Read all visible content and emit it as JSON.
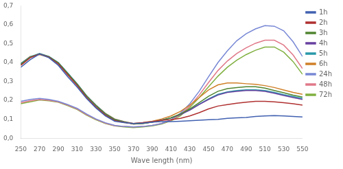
{
  "chart_data": {
    "type": "line",
    "xlabel": "Wave length (nm)",
    "x": [
      250,
      260,
      270,
      280,
      290,
      300,
      310,
      320,
      330,
      340,
      350,
      360,
      370,
      380,
      390,
      400,
      410,
      420,
      430,
      440,
      450,
      460,
      470,
      480,
      490,
      500,
      510,
      520,
      530,
      540,
      550
    ],
    "series": [
      {
        "name": "1h",
        "color": "#4060b0",
        "values": [
          0.375,
          0.415,
          0.445,
          0.425,
          0.385,
          0.325,
          0.27,
          0.21,
          0.16,
          0.118,
          0.09,
          0.082,
          0.078,
          0.08,
          0.085,
          0.088,
          0.088,
          0.09,
          0.092,
          0.095,
          0.098,
          0.1,
          0.105,
          0.108,
          0.11,
          0.115,
          0.118,
          0.12,
          0.118,
          0.115,
          0.112
        ]
      },
      {
        "name": "2h",
        "color": "#b03030",
        "values": [
          0.385,
          0.425,
          0.445,
          0.428,
          0.392,
          0.335,
          0.278,
          0.215,
          0.165,
          0.122,
          0.093,
          0.083,
          0.078,
          0.082,
          0.088,
          0.095,
          0.098,
          0.105,
          0.118,
          0.135,
          0.155,
          0.17,
          0.178,
          0.185,
          0.19,
          0.195,
          0.195,
          0.192,
          0.188,
          0.182,
          0.175
        ]
      },
      {
        "name": "3h",
        "color": "#508530",
        "values": [
          0.39,
          0.428,
          0.445,
          0.43,
          0.398,
          0.342,
          0.285,
          0.222,
          0.172,
          0.128,
          0.098,
          0.085,
          0.075,
          0.078,
          0.085,
          0.095,
          0.108,
          0.128,
          0.155,
          0.188,
          0.222,
          0.248,
          0.262,
          0.268,
          0.272,
          0.272,
          0.265,
          0.252,
          0.24,
          0.228,
          0.218
        ]
      },
      {
        "name": "4h",
        "color": "#6840a0",
        "values": [
          0.39,
          0.428,
          0.445,
          0.43,
          0.398,
          0.342,
          0.285,
          0.222,
          0.172,
          0.128,
          0.098,
          0.085,
          0.075,
          0.078,
          0.085,
          0.095,
          0.108,
          0.125,
          0.148,
          0.178,
          0.205,
          0.228,
          0.242,
          0.248,
          0.252,
          0.252,
          0.248,
          0.238,
          0.226,
          0.215,
          0.205
        ]
      },
      {
        "name": "5h",
        "color": "#2898a8",
        "values": [
          0.395,
          0.43,
          0.448,
          0.432,
          0.4,
          0.345,
          0.288,
          0.225,
          0.175,
          0.13,
          0.1,
          0.087,
          0.076,
          0.079,
          0.086,
          0.096,
          0.108,
          0.126,
          0.15,
          0.18,
          0.208,
          0.232,
          0.245,
          0.252,
          0.256,
          0.256,
          0.252,
          0.242,
          0.23,
          0.22,
          0.21
        ]
      },
      {
        "name": "6h",
        "color": "#d08028",
        "values": [
          0.395,
          0.432,
          0.442,
          0.428,
          0.398,
          0.342,
          0.288,
          0.225,
          0.175,
          0.132,
          0.102,
          0.088,
          0.078,
          0.082,
          0.09,
          0.102,
          0.118,
          0.142,
          0.175,
          0.215,
          0.255,
          0.282,
          0.292,
          0.292,
          0.288,
          0.285,
          0.278,
          0.268,
          0.255,
          0.242,
          0.232
        ]
      },
      {
        "name": "24h",
        "color": "#7888d5",
        "values": [
          0.195,
          0.205,
          0.21,
          0.205,
          0.195,
          0.178,
          0.158,
          0.128,
          0.102,
          0.082,
          0.068,
          0.062,
          0.06,
          0.062,
          0.068,
          0.078,
          0.098,
          0.132,
          0.182,
          0.248,
          0.325,
          0.4,
          0.462,
          0.515,
          0.552,
          0.578,
          0.595,
          0.592,
          0.568,
          0.51,
          0.432
        ]
      },
      {
        "name": "48h",
        "color": "#e07888",
        "values": [
          0.188,
          0.198,
          0.205,
          0.2,
          0.192,
          0.175,
          0.155,
          0.125,
          0.1,
          0.08,
          0.066,
          0.062,
          0.06,
          0.062,
          0.068,
          0.078,
          0.095,
          0.125,
          0.17,
          0.228,
          0.295,
          0.358,
          0.408,
          0.448,
          0.478,
          0.502,
          0.518,
          0.518,
          0.492,
          0.44,
          0.368
        ]
      },
      {
        "name": "72h",
        "color": "#80b040",
        "values": [
          0.182,
          0.192,
          0.202,
          0.198,
          0.19,
          0.172,
          0.152,
          0.122,
          0.098,
          0.078,
          0.065,
          0.06,
          0.056,
          0.06,
          0.065,
          0.075,
          0.092,
          0.118,
          0.162,
          0.215,
          0.272,
          0.328,
          0.375,
          0.412,
          0.442,
          0.465,
          0.482,
          0.482,
          0.455,
          0.405,
          0.338
        ]
      }
    ],
    "xlim": [
      250,
      550
    ],
    "xticks": [
      250,
      270,
      290,
      310,
      330,
      350,
      370,
      390,
      410,
      430,
      450,
      470,
      490,
      510,
      530,
      550
    ],
    "ylim": [
      0,
      0.7
    ],
    "yticks": [
      {
        "value": 0,
        "label": "0,0"
      },
      {
        "value": 0.1,
        "label": "0,1"
      },
      {
        "value": 0.2,
        "label": "0,2"
      },
      {
        "value": 0.3,
        "label": "0,3"
      },
      {
        "value": 0.4,
        "label": "0,4"
      },
      {
        "value": 0.5,
        "label": "0,5"
      },
      {
        "value": 0.6,
        "label": "0,6"
      },
      {
        "value": 0.7,
        "label": "0,7"
      }
    ],
    "grid": false,
    "legend": "right"
  }
}
